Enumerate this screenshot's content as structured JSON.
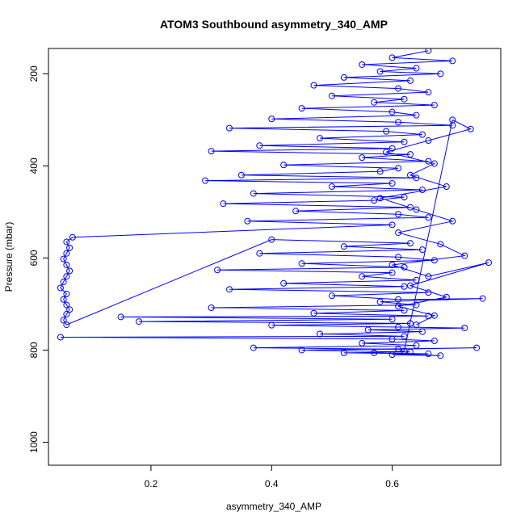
{
  "chart_data": {
    "type": "scatter",
    "title": "ATOM3 Southbound asymmetry_340_AMP",
    "xlabel": "asymmetry_340_AMP",
    "ylabel": "Pressure (mbar)",
    "xlim": [
      0.03,
      0.78
    ],
    "ylim": [
      1050,
      145
    ],
    "y_reversed": true,
    "x_ticks": [
      0.2,
      0.4,
      0.6
    ],
    "x_tick_labels": [
      "0.2",
      "0.4",
      "0.6"
    ],
    "y_ticks": [
      200,
      400,
      600,
      800,
      1000
    ],
    "y_tick_labels": [
      "200",
      "400",
      "600",
      "800",
      "1000"
    ],
    "grid": false,
    "legend": "none",
    "series_color": "#0000ff",
    "marker": "open-circle",
    "connected": true,
    "series": [
      {
        "points": [
          [
            0.66,
            150
          ],
          [
            0.6,
            165
          ],
          [
            0.7,
            172
          ],
          [
            0.55,
            180
          ],
          [
            0.64,
            188
          ],
          [
            0.58,
            195
          ],
          [
            0.68,
            200
          ],
          [
            0.52,
            208
          ],
          [
            0.63,
            215
          ],
          [
            0.47,
            225
          ],
          [
            0.61,
            232
          ],
          [
            0.66,
            240
          ],
          [
            0.5,
            248
          ],
          [
            0.62,
            255
          ],
          [
            0.57,
            262
          ],
          [
            0.67,
            268
          ],
          [
            0.45,
            275
          ],
          [
            0.6,
            283
          ],
          [
            0.64,
            290
          ],
          [
            0.4,
            298
          ],
          [
            0.61,
            305
          ],
          [
            0.7,
            312
          ],
          [
            0.33,
            318
          ],
          [
            0.59,
            325
          ],
          [
            0.65,
            332
          ],
          [
            0.48,
            340
          ],
          [
            0.62,
            348
          ],
          [
            0.38,
            356
          ],
          [
            0.6,
            362
          ],
          [
            0.3,
            368
          ],
          [
            0.63,
            375
          ],
          [
            0.55,
            382
          ],
          [
            0.66,
            390
          ],
          [
            0.42,
            398
          ],
          [
            0.61,
            405
          ],
          [
            0.58,
            412
          ],
          [
            0.35,
            420
          ],
          [
            0.64,
            426
          ],
          [
            0.29,
            432
          ],
          [
            0.6,
            438
          ],
          [
            0.5,
            445
          ],
          [
            0.65,
            452
          ],
          [
            0.37,
            460
          ],
          [
            0.62,
            468
          ],
          [
            0.57,
            475
          ],
          [
            0.32,
            482
          ],
          [
            0.63,
            490
          ],
          [
            0.44,
            498
          ],
          [
            0.61,
            505
          ],
          [
            0.66,
            512
          ],
          [
            0.36,
            520
          ],
          [
            0.6,
            528
          ],
          [
            0.07,
            555
          ],
          [
            0.06,
            565
          ],
          [
            0.065,
            578
          ],
          [
            0.06,
            590
          ],
          [
            0.055,
            602
          ],
          [
            0.06,
            615
          ],
          [
            0.065,
            628
          ],
          [
            0.06,
            640
          ],
          [
            0.055,
            652
          ],
          [
            0.05,
            665
          ],
          [
            0.06,
            678
          ],
          [
            0.055,
            690
          ],
          [
            0.06,
            702
          ],
          [
            0.065,
            712
          ],
          [
            0.06,
            722
          ],
          [
            0.055,
            735
          ],
          [
            0.06,
            745
          ],
          [
            0.4,
            560
          ],
          [
            0.63,
            568
          ],
          [
            0.52,
            575
          ],
          [
            0.65,
            582
          ],
          [
            0.38,
            590
          ],
          [
            0.61,
            598
          ],
          [
            0.67,
            605
          ],
          [
            0.45,
            612
          ],
          [
            0.62,
            620
          ],
          [
            0.31,
            626
          ],
          [
            0.6,
            632
          ],
          [
            0.55,
            640
          ],
          [
            0.64,
            648
          ],
          [
            0.42,
            655
          ],
          [
            0.62,
            662
          ],
          [
            0.33,
            668
          ],
          [
            0.66,
            675
          ],
          [
            0.5,
            682
          ],
          [
            0.61,
            690
          ],
          [
            0.75,
            688
          ],
          [
            0.58,
            695
          ],
          [
            0.64,
            702
          ],
          [
            0.3,
            708
          ],
          [
            0.62,
            714
          ],
          [
            0.47,
            720
          ],
          [
            0.66,
            726
          ],
          [
            0.15,
            728
          ],
          [
            0.6,
            733
          ],
          [
            0.18,
            738
          ],
          [
            0.63,
            742
          ],
          [
            0.4,
            746
          ],
          [
            0.61,
            750
          ],
          [
            0.72,
            752
          ],
          [
            0.56,
            756
          ],
          [
            0.65,
            760
          ],
          [
            0.48,
            765
          ],
          [
            0.62,
            770
          ],
          [
            0.05,
            772
          ],
          [
            0.6,
            776
          ],
          [
            0.67,
            780
          ],
          [
            0.55,
            785
          ],
          [
            0.64,
            790
          ],
          [
            0.37,
            795
          ],
          [
            0.61,
            798
          ],
          [
            0.74,
            795
          ],
          [
            0.45,
            800
          ],
          [
            0.63,
            804
          ],
          [
            0.52,
            806
          ],
          [
            0.66,
            808
          ],
          [
            0.6,
            810
          ],
          [
            0.68,
            812
          ],
          [
            0.57,
            806
          ],
          [
            0.62,
            802
          ],
          [
            0.7,
            300
          ],
          [
            0.73,
            320
          ],
          [
            0.66,
            345
          ],
          [
            0.59,
            370
          ],
          [
            0.67,
            395
          ],
          [
            0.63,
            420
          ],
          [
            0.69,
            445
          ],
          [
            0.58,
            470
          ],
          [
            0.64,
            495
          ],
          [
            0.7,
            520
          ],
          [
            0.61,
            545
          ],
          [
            0.68,
            570
          ],
          [
            0.72,
            595
          ],
          [
            0.6,
            615
          ],
          [
            0.66,
            640
          ],
          [
            0.76,
            610
          ],
          [
            0.63,
            660
          ],
          [
            0.69,
            685
          ],
          [
            0.61,
            705
          ],
          [
            0.67,
            725
          ],
          [
            0.64,
            745
          ]
        ]
      }
    ]
  }
}
